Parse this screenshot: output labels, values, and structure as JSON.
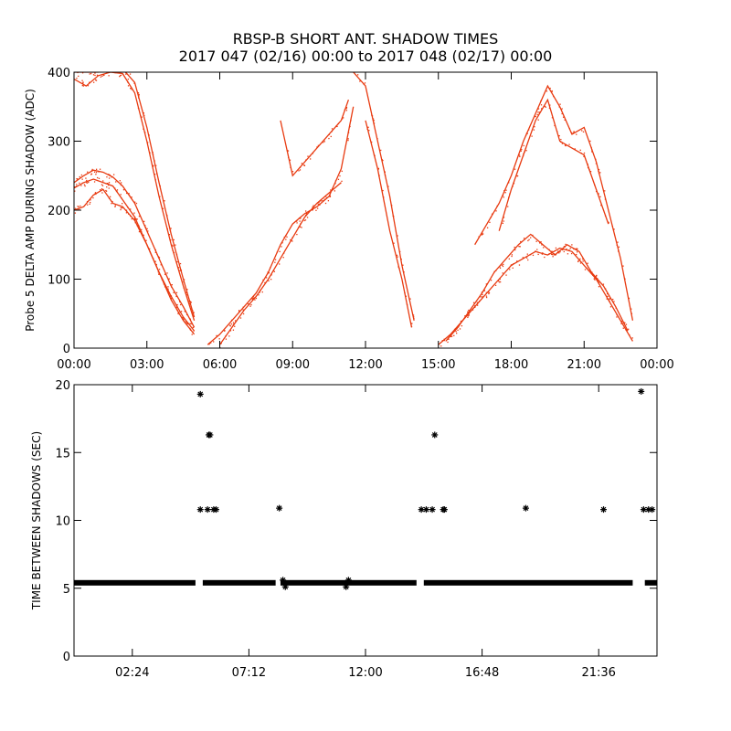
{
  "title_line1": "RBSP-B SHORT ANT. SHADOW TIMES",
  "title_line2": "2017 047 (02/16) 00:00 to 2017 048 (02/17) 00:00",
  "colors": {
    "data_top": "#e83a10",
    "data_bottom": "#000000",
    "axes": "#000000"
  },
  "chart_data": [
    {
      "type": "scatter",
      "ylabel": "Probe 5 DELTA AMP DURING SHADOW (ADC)",
      "xlabel": "",
      "xlim": [
        0,
        24
      ],
      "ylim": [
        0,
        400
      ],
      "xtick_values": [
        0,
        3,
        6,
        9,
        12,
        15,
        18,
        21,
        24
      ],
      "xtick_labels": [
        "00:00",
        "03:00",
        "06:00",
        "09:00",
        "12:00",
        "15:00",
        "18:00",
        "21:00",
        "00:00"
      ],
      "ytick_values": [
        0,
        100,
        200,
        300,
        400
      ],
      "ytick_labels": [
        "0",
        "100",
        "200",
        "300",
        "400"
      ],
      "series": [
        {
          "x": [
            0.0,
            0.5,
            1.0,
            1.5,
            2.0,
            2.5,
            3.0,
            3.5,
            4.0,
            4.5,
            4.95
          ],
          "y": [
            390,
            380,
            395,
            400,
            398,
            370,
            300,
            220,
            150,
            90,
            40
          ]
        },
        {
          "x": [
            0.0,
            0.5,
            1.0,
            1.5,
            2.0,
            2.5,
            3.0,
            3.5,
            4.0,
            4.5,
            4.95
          ],
          "y": [
            400,
            400,
            400,
            405,
            405,
            385,
            320,
            240,
            165,
            100,
            45
          ]
        },
        {
          "x": [
            0.0,
            0.4,
            0.8,
            1.2,
            1.6,
            2.0,
            2.5,
            3.0,
            3.5,
            4.0,
            4.5,
            4.95
          ],
          "y": [
            240,
            250,
            258,
            255,
            248,
            235,
            210,
            170,
            130,
            90,
            60,
            30
          ]
        },
        {
          "x": [
            0.0,
            0.4,
            0.8,
            1.2,
            1.6,
            2.0,
            2.5,
            3.0,
            3.5,
            4.0,
            4.5,
            4.95
          ],
          "y": [
            232,
            240,
            245,
            240,
            235,
            215,
            190,
            150,
            110,
            75,
            45,
            25
          ]
        },
        {
          "x": [
            0.0,
            0.4,
            0.8,
            1.2,
            1.6,
            2.0,
            2.5,
            3.0,
            3.5,
            4.0,
            4.5,
            4.95
          ],
          "y": [
            200,
            205,
            222,
            230,
            210,
            205,
            185,
            150,
            110,
            70,
            40,
            20
          ]
        },
        {
          "x": [
            5.5,
            6.0,
            6.5,
            7.0,
            7.5,
            8.0,
            8.5,
            9.0,
            9.5,
            10.0,
            10.5,
            11.0,
            11.5
          ],
          "y": [
            5,
            20,
            40,
            60,
            80,
            110,
            150,
            180,
            195,
            205,
            220,
            260,
            350
          ]
        },
        {
          "x": [
            6.0,
            6.5,
            7.0,
            7.5,
            8.0,
            8.5,
            9.0,
            9.5,
            10.0,
            10.5,
            11.0
          ],
          "y": [
            5,
            30,
            55,
            75,
            100,
            130,
            160,
            190,
            210,
            225,
            240
          ]
        },
        {
          "x": [
            8.5,
            9.0,
            9.5,
            10.0,
            10.5,
            11.0,
            11.3
          ],
          "y": [
            330,
            250,
            270,
            290,
            310,
            330,
            360
          ]
        },
        {
          "x": [
            11.5,
            12.0,
            12.5,
            13.0,
            13.5,
            14.0
          ],
          "y": [
            400,
            380,
            300,
            220,
            120,
            40
          ]
        },
        {
          "x": [
            12.0,
            12.5,
            13.0,
            13.5,
            13.9
          ],
          "y": [
            330,
            260,
            170,
            100,
            30
          ]
        },
        {
          "x": [
            15.0,
            15.5,
            16.0,
            16.5,
            17.0,
            17.5,
            18.0,
            18.5,
            19.0,
            19.5,
            20.0,
            20.5,
            21.0,
            21.5,
            22.0,
            22.5,
            23.0
          ],
          "y": [
            5,
            20,
            40,
            60,
            80,
            100,
            120,
            130,
            140,
            135,
            145,
            140,
            120,
            100,
            70,
            40,
            10
          ]
        },
        {
          "x": [
            15.3,
            15.8,
            16.3,
            16.8,
            17.3,
            17.8,
            18.3,
            18.8,
            19.3,
            19.8,
            20.3,
            20.8,
            21.3,
            21.8,
            22.3,
            22.8
          ],
          "y": [
            10,
            30,
            55,
            80,
            110,
            130,
            150,
            165,
            150,
            135,
            150,
            140,
            110,
            90,
            60,
            25
          ]
        },
        {
          "x": [
            16.5,
            17.0,
            17.5,
            18.0,
            18.5,
            19.0,
            19.5,
            20.0,
            20.5,
            21.0,
            21.5,
            22.0,
            22.5,
            23.0
          ],
          "y": [
            150,
            180,
            210,
            250,
            300,
            340,
            380,
            350,
            310,
            320,
            270,
            200,
            130,
            40
          ]
        },
        {
          "x": [
            17.5,
            18.0,
            18.5,
            19.0,
            19.5,
            20.0,
            20.5,
            21.0,
            21.5,
            22.0
          ],
          "y": [
            170,
            230,
            280,
            330,
            360,
            300,
            290,
            280,
            230,
            180
          ]
        }
      ]
    },
    {
      "type": "scatter",
      "ylabel": "TIME BETWEEN SHADOWS (SEC)",
      "xlabel": "",
      "xlim": [
        0,
        24
      ],
      "ylim": [
        0,
        20
      ],
      "xtick_values": [
        2.4,
        7.2,
        12.0,
        16.8,
        21.6
      ],
      "xtick_labels": [
        "02:24",
        "07:12",
        "12:00",
        "16:48",
        "21:36"
      ],
      "ytick_values": [
        0,
        5,
        10,
        15,
        20
      ],
      "ytick_labels": [
        "0",
        "5",
        "10",
        "15",
        "20"
      ],
      "baseline": {
        "y": 5.4,
        "x_ranges": [
          [
            0.0,
            5.0
          ],
          [
            5.3,
            8.3
          ],
          [
            8.5,
            14.1
          ],
          [
            14.4,
            23.0
          ],
          [
            23.5,
            24.0
          ]
        ]
      },
      "points": [
        {
          "x": 5.2,
          "y": 19.3
        },
        {
          "x": 5.55,
          "y": 16.3
        },
        {
          "x": 5.6,
          "y": 16.3
        },
        {
          "x": 5.2,
          "y": 10.8
        },
        {
          "x": 5.5,
          "y": 10.8
        },
        {
          "x": 5.75,
          "y": 10.8
        },
        {
          "x": 5.85,
          "y": 10.8
        },
        {
          "x": 8.45,
          "y": 10.9
        },
        {
          "x": 14.3,
          "y": 10.8
        },
        {
          "x": 14.5,
          "y": 10.8
        },
        {
          "x": 14.75,
          "y": 10.8
        },
        {
          "x": 14.85,
          "y": 16.3
        },
        {
          "x": 15.2,
          "y": 10.8
        },
        {
          "x": 15.25,
          "y": 10.8
        },
        {
          "x": 18.6,
          "y": 10.9
        },
        {
          "x": 21.8,
          "y": 10.8
        },
        {
          "x": 23.35,
          "y": 19.5
        },
        {
          "x": 23.45,
          "y": 10.8
        },
        {
          "x": 23.65,
          "y": 10.8
        },
        {
          "x": 23.8,
          "y": 10.8
        },
        {
          "x": 8.6,
          "y": 5.6
        },
        {
          "x": 8.7,
          "y": 5.1
        },
        {
          "x": 11.2,
          "y": 5.1
        },
        {
          "x": 11.3,
          "y": 5.6
        }
      ]
    }
  ]
}
